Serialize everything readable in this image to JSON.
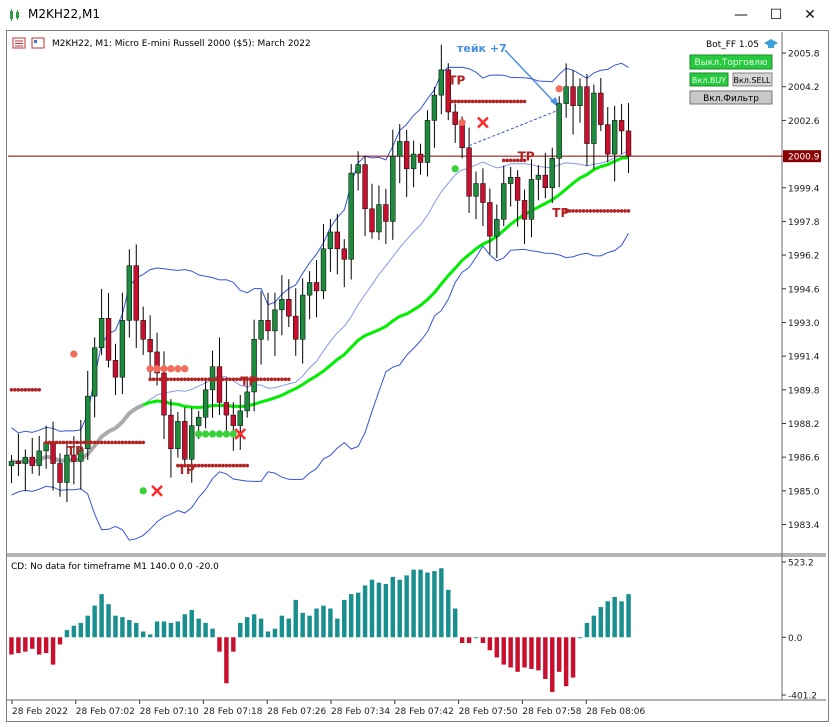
{
  "window": {
    "title": "M2KH22,M1",
    "minimize_icon": "minimize-icon",
    "maximize_icon": "maximize-icon",
    "close_icon": "close-icon"
  },
  "chart": {
    "header": "M2KH22, M1:  Micro E-mini Russell 2000 ($5): March 2022",
    "annotation": "тейк +7",
    "tp_label": "TP",
    "bot": {
      "label": "Bot_FF 1.05",
      "btn_trade": "Выкл.Торговлю",
      "btn_buy": "Вкл.BUY",
      "btn_sell": "Вкл.SELL",
      "btn_filter": "Вкл.Фильтр"
    },
    "current_price": "2000.9",
    "colors": {
      "bull": "#1e8a3e",
      "bear": "#c8102e",
      "bands": "#3355dd",
      "ma_green": "#00ee00",
      "price_line": "#8b0000"
    }
  },
  "chart_data": [
    {
      "type": "candlestick",
      "title": "M2KH22, M1:  Micro E-mini Russell 2000 ($5): March 2022",
      "ylim": [
        1982.0,
        2006.8
      ],
      "y_ticks": [
        "2005.8",
        "2004.2",
        "2002.6",
        "2000.9",
        "1999.4",
        "1997.8",
        "1996.2",
        "1994.6",
        "1993.0",
        "1991.4",
        "1989.8",
        "1988.2",
        "1986.6",
        "1985.0",
        "1983.4"
      ],
      "x_ticks": [
        "28 Feb 2022",
        "28 Feb 07:02",
        "28 Feb 07:10",
        "28 Feb 07:18",
        "28 Feb 07:26",
        "28 Feb 07:34",
        "28 Feb 07:42",
        "28 Feb 07:50",
        "28 Feb 07:58",
        "28 Feb 08:06"
      ],
      "close": [
        1986.4,
        1986.3,
        1986.6,
        1986.2,
        1986.9,
        1987.3,
        1986.3,
        1985.4,
        1986.7,
        1986.4,
        1987.0,
        1989.5,
        1991.8,
        1993.2,
        1991.2,
        1990.4,
        1993.1,
        1995.7,
        1993.1,
        1992.2,
        1991.6,
        1990.6,
        1988.6,
        1987.0,
        1988.3,
        1986.5,
        1988.1,
        1988.5,
        1989.8,
        1990.9,
        1989.2,
        1988.6,
        1988.1,
        1988.8,
        1989.7,
        1992.2,
        1993.1,
        1992.6,
        1993.6,
        1994.1,
        1993.3,
        1992.2,
        1994.3,
        1994.9,
        1994.5,
        1996.5,
        1997.3,
        1996.5,
        1996.0,
        2000.1,
        2000.5,
        1998.4,
        1997.3,
        1998.6,
        1997.8,
        2000.9,
        2001.6,
        2000.3,
        2001.0,
        2000.6,
        2002.6,
        2003.8,
        2005.0,
        2003.0,
        2002.4,
        2001.3,
        1999.0,
        1999.6,
        1998.7,
        1997.1,
        1997.9,
        1999.6,
        1999.9,
        1998.8,
        1997.9,
        1999.8,
        2000.0,
        1999.4,
        2000.8,
        2003.4,
        2004.2,
        2003.3,
        2004.2,
        2001.5,
        2003.9,
        2002.4,
        2001.0,
        2002.6,
        2002.1,
        2000.9
      ],
      "indicators": [
        "Bollinger Bands",
        "Moving Average"
      ]
    },
    {
      "type": "bar",
      "title": "CD: No data for timeframe M1 140.0 0.0 -20.0",
      "ylim": [
        -401.2,
        523.2
      ],
      "y_ticks": [
        "523.2",
        "0.0",
        "-401.2"
      ],
      "values": [
        -120,
        -110,
        -100,
        -80,
        -120,
        -110,
        -190,
        -50,
        50,
        80,
        100,
        150,
        220,
        300,
        230,
        150,
        140,
        120,
        100,
        40,
        20,
        110,
        110,
        100,
        110,
        160,
        190,
        130,
        100,
        60,
        -100,
        -320,
        -100,
        100,
        140,
        160,
        130,
        40,
        60,
        150,
        130,
        260,
        170,
        150,
        200,
        220,
        200,
        130,
        260,
        300,
        310,
        360,
        400,
        380,
        370,
        420,
        400,
        430,
        470,
        470,
        450,
        460,
        480,
        330,
        200,
        -40,
        -40,
        0,
        -40,
        -90,
        -140,
        -190,
        -210,
        -240,
        -210,
        -220,
        -230,
        -290,
        -380,
        -240,
        -340,
        -280,
        0,
        100,
        150,
        210,
        250,
        280,
        250,
        300
      ]
    }
  ]
}
